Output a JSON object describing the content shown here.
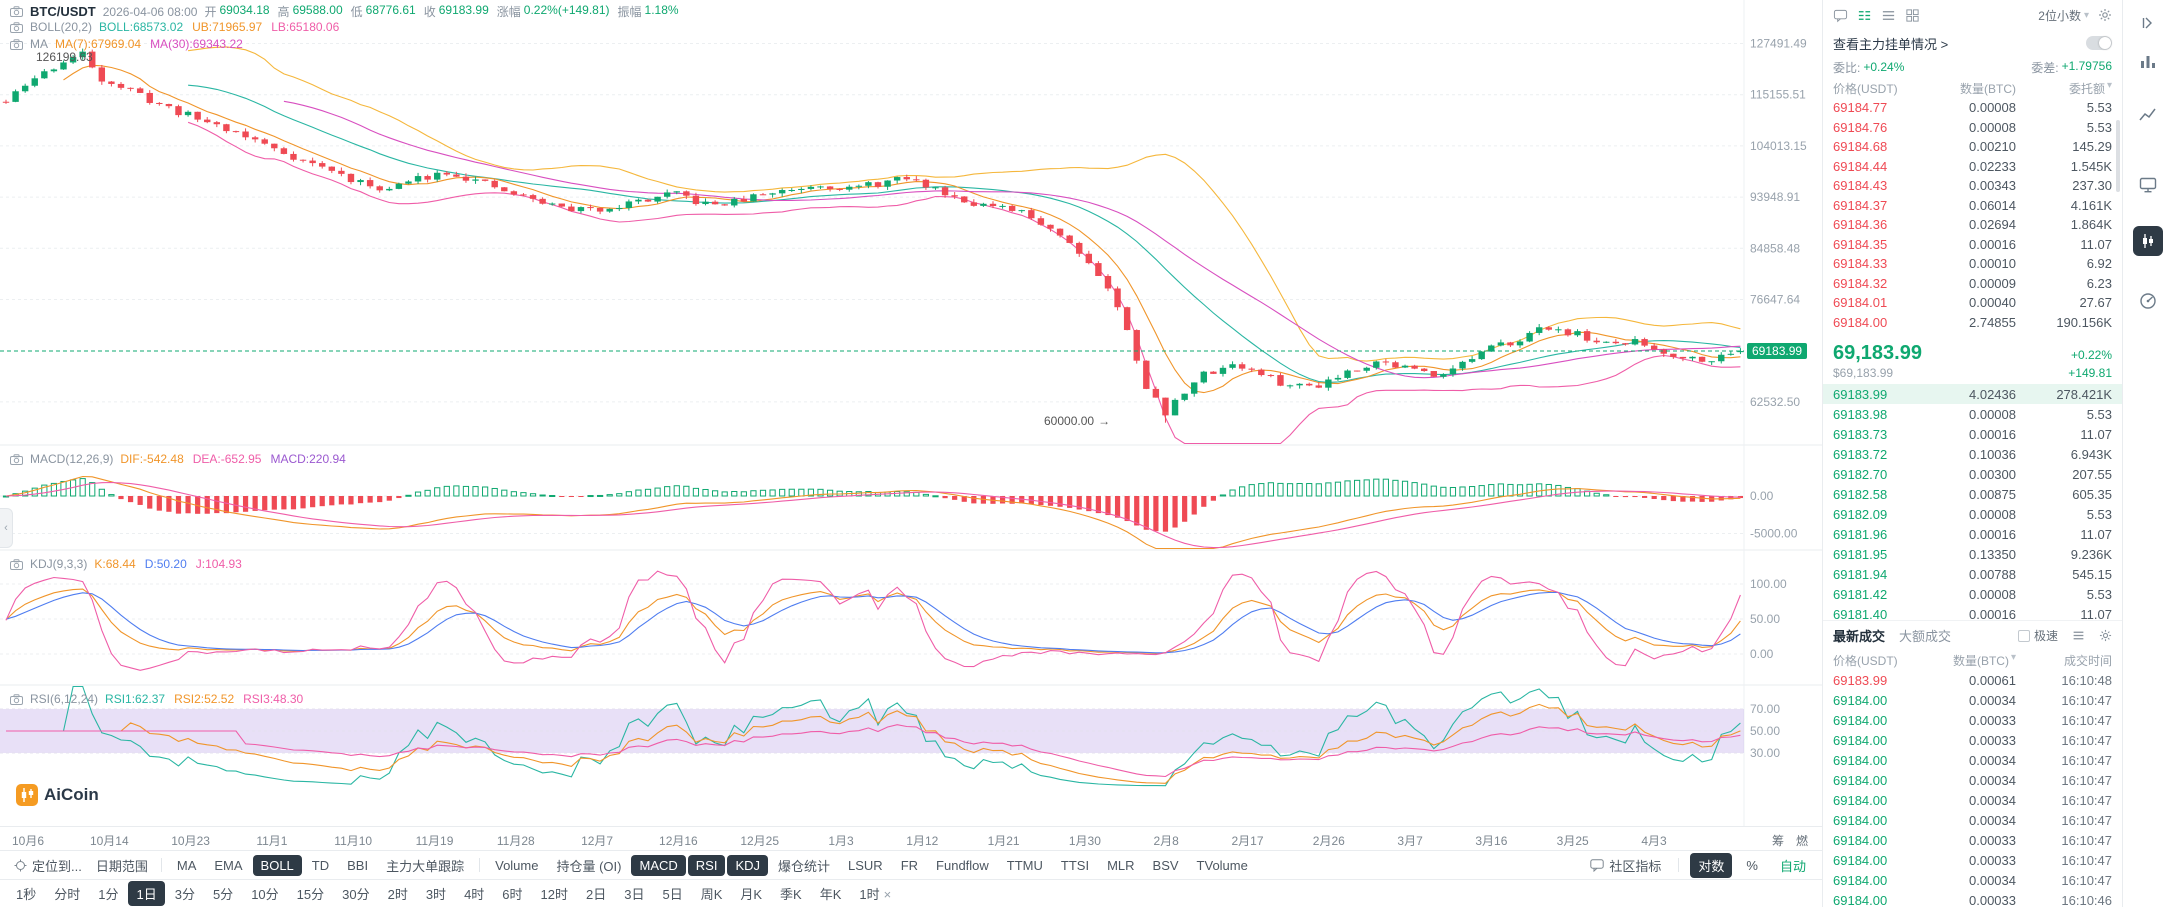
{
  "colors": {
    "up": "#0fa870",
    "down": "#ef4a54",
    "ma7": "#f0952a",
    "ma30": "#d84fc0",
    "boll_mid": "#2ab6a3",
    "boll_ub": "#f5b73c",
    "boll_lb": "#ef5da8",
    "macd_dif": "#f0952a",
    "macd_dea": "#ef5da8",
    "kdj_k": "#f0952a",
    "kdj_d": "#4f7df0",
    "kdj_j": "#ef5da8",
    "rsi1": "#2ab6a3",
    "rsi2": "#f0952a",
    "rsi3": "#ef5da8",
    "rsi_band": "#b9a0e6"
  },
  "ui": {
    "caret": "▾",
    "close_glyph": "×",
    "collapse_glyph": "‹"
  },
  "header": {
    "symbol": "BTC/USDT",
    "datetime": "2026-04-06 08:00",
    "fields": [
      {
        "label": "开",
        "value": "69034.18"
      },
      {
        "label": "高",
        "value": "69588.00"
      },
      {
        "label": "低",
        "value": "68776.61"
      },
      {
        "label": "收",
        "value": "69183.99"
      },
      {
        "label": "涨幅",
        "value": "0.22%(+149.81)"
      },
      {
        "label": "振幅",
        "value": "1.18%"
      }
    ]
  },
  "overlays": {
    "boll": {
      "name": "BOLL(20,2)",
      "parts": [
        {
          "text": "BOLL:68573.02",
          "color": "#2ab6a3"
        },
        {
          "text": "UB:71965.97",
          "color": "#f0952a"
        },
        {
          "text": "LB:65180.06",
          "color": "#ef5da8"
        }
      ]
    },
    "ma": {
      "name": "MA",
      "parts": [
        {
          "text": "MA(7):67969.04",
          "color": "#f0952a"
        },
        {
          "text": "MA(30):69343.22",
          "color": "#d84fc0"
        }
      ]
    }
  },
  "panes": {
    "macd": {
      "name": "MACD(12,26,9)",
      "parts": [
        {
          "text": "DIF:-542.48",
          "color": "#f0952a"
        },
        {
          "text": "DEA:-652.95",
          "color": "#ef5da8"
        },
        {
          "text": "MACD:220.94",
          "color": "#9b59d0"
        }
      ],
      "ticks": [
        "0.00",
        "-5000.00"
      ]
    },
    "kdj": {
      "name": "KDJ(9,3,3)",
      "parts": [
        {
          "text": "K:68.44",
          "color": "#f0952a"
        },
        {
          "text": "D:50.20",
          "color": "#4f7df0"
        },
        {
          "text": "J:104.93",
          "color": "#ef5da8"
        }
      ],
      "ticks": [
        "100.00",
        "50.00",
        "0.00"
      ]
    },
    "rsi": {
      "name": "RSI(6,12,24)",
      "parts": [
        {
          "text": "RSI1:62.37",
          "color": "#2ab6a3"
        },
        {
          "text": "RSI2:52.52",
          "color": "#f0952a"
        },
        {
          "text": "RSI3:48.30",
          "color": "#ef5da8"
        }
      ],
      "ticks": [
        "70.00",
        "50.00",
        "30.00"
      ]
    }
  },
  "main_axis": {
    "ticks": [
      "127491.49",
      "115155.51",
      "104013.15",
      "93948.91",
      "84858.48",
      "76647.64",
      "62532.50"
    ],
    "current": "69183.99"
  },
  "annotations": {
    "peak": "126199.63",
    "trough": "60000.00",
    "trough_arrow": "→"
  },
  "watermark": "AiCoin",
  "axis_buttons": [
    "筹",
    "燃"
  ],
  "dates": [
    "10月6",
    "10月14",
    "10月23",
    "11月1",
    "11月10",
    "11月19",
    "11月28",
    "12月7",
    "12月16",
    "12月25",
    "1月3",
    "1月12",
    "1月21",
    "1月30",
    "2月8",
    "2月17",
    "2月26",
    "3月7",
    "3月16",
    "3月25",
    "4月3"
  ],
  "chart_data": {
    "type": "candlestick",
    "symbol": "BTC/USDT",
    "interval": "1日",
    "candle_count": 182,
    "price_keypoints": [
      [
        0,
        113500
      ],
      [
        3,
        119000
      ],
      [
        6,
        123000
      ],
      [
        8,
        124800
      ],
      [
        10,
        119000
      ],
      [
        13,
        116000
      ],
      [
        16,
        113000
      ],
      [
        19,
        110500
      ],
      [
        22,
        108500
      ],
      [
        25,
        106000
      ],
      [
        28,
        103500
      ],
      [
        31,
        101000
      ],
      [
        34,
        99000
      ],
      [
        37,
        96500
      ],
      [
        40,
        95500
      ],
      [
        43,
        97500
      ],
      [
        46,
        99000
      ],
      [
        49,
        97000
      ],
      [
        52,
        95000
      ],
      [
        55,
        93500
      ],
      [
        58,
        92000
      ],
      [
        61,
        91500
      ],
      [
        64,
        92500
      ],
      [
        67,
        93500
      ],
      [
        70,
        94500
      ],
      [
        73,
        92500
      ],
      [
        76,
        93000
      ],
      [
        79,
        94500
      ],
      [
        82,
        95500
      ],
      [
        85,
        96500
      ],
      [
        88,
        95500
      ],
      [
        91,
        96500
      ],
      [
        94,
        97500
      ],
      [
        97,
        95500
      ],
      [
        100,
        93500
      ],
      [
        103,
        92000
      ],
      [
        106,
        91000
      ],
      [
        109,
        88500
      ],
      [
        112,
        84500
      ],
      [
        115,
        78500
      ],
      [
        117,
        72000
      ],
      [
        119,
        64500
      ],
      [
        121,
        61000
      ],
      [
        123,
        64000
      ],
      [
        125,
        66000
      ],
      [
        128,
        67500
      ],
      [
        131,
        66000
      ],
      [
        134,
        64500
      ],
      [
        137,
        64800
      ],
      [
        140,
        66500
      ],
      [
        143,
        67800
      ],
      [
        146,
        67000
      ],
      [
        149,
        66000
      ],
      [
        152,
        67500
      ],
      [
        155,
        69500
      ],
      [
        158,
        71000
      ],
      [
        161,
        72600
      ],
      [
        164,
        71500
      ],
      [
        167,
        70000
      ],
      [
        170,
        70500
      ],
      [
        173,
        69000
      ],
      [
        176,
        68200
      ],
      [
        179,
        68300
      ],
      [
        181,
        69100
      ]
    ],
    "peak": {
      "index": 8,
      "price": 126199.63
    },
    "trough": {
      "index": 121,
      "price": 60000.0
    },
    "last_candle": {
      "o": 69034.18,
      "h": 69588.0,
      "l": 68776.61,
      "c": 69183.99
    },
    "current_price": 69183.99,
    "y_axis_log_ticks": [
      127491.49,
      115155.51,
      104013.15,
      93948.91,
      84858.48,
      76647.64,
      62532.5
    ],
    "indicators": {
      "boll": {
        "period": 20,
        "mult": 2
      },
      "ma": [
        7,
        30
      ],
      "macd": {
        "fast": 12,
        "slow": 26,
        "signal": 9,
        "ticks": [
          0,
          -5000
        ]
      },
      "kdj": {
        "params": [
          9,
          3,
          3
        ],
        "ticks": [
          100,
          50,
          0
        ]
      },
      "rsi": {
        "periods": [
          6,
          12,
          24
        ],
        "ticks": [
          70,
          50,
          30
        ]
      }
    }
  },
  "panel": {
    "decimal_selector": "2位小数"
  },
  "orderbook": {
    "view_link": "查看主力挂单情况 >",
    "ratio_label": "委比:",
    "ratio_value": "+0.24%",
    "diff_label": "委差:",
    "diff_value": "+1.79756",
    "columns": [
      "价格(USDT)",
      "数量(BTC)",
      "委托额"
    ],
    "asks": [
      [
        "69184.77",
        "0.00008",
        "5.53"
      ],
      [
        "69184.76",
        "0.00008",
        "5.53"
      ],
      [
        "69184.68",
        "0.00210",
        "145.29"
      ],
      [
        "69184.44",
        "0.02233",
        "1.545K"
      ],
      [
        "69184.43",
        "0.00343",
        "237.30"
      ],
      [
        "69184.37",
        "0.06014",
        "4.161K"
      ],
      [
        "69184.36",
        "0.02694",
        "1.864K"
      ],
      [
        "69184.35",
        "0.00016",
        "11.07"
      ],
      [
        "69184.33",
        "0.00010",
        "6.92"
      ],
      [
        "69184.32",
        "0.00009",
        "6.23"
      ],
      [
        "69184.01",
        "0.00040",
        "27.67"
      ],
      [
        "69184.00",
        "2.74855",
        "190.156K"
      ]
    ],
    "last_price": "69,183.99",
    "last_change_pct": "+0.22%",
    "last_price_usd": "$69,183.99",
    "last_change_abs": "+149.81",
    "bids": [
      [
        "69183.99",
        "4.02436",
        "278.421K"
      ],
      [
        "69183.98",
        "0.00008",
        "5.53"
      ],
      [
        "69183.73",
        "0.00016",
        "11.07"
      ],
      [
        "69183.72",
        "0.10036",
        "6.943K"
      ],
      [
        "69182.70",
        "0.00300",
        "207.55"
      ],
      [
        "69182.58",
        "0.00875",
        "605.35"
      ],
      [
        "69182.09",
        "0.00008",
        "5.53"
      ],
      [
        "69181.96",
        "0.00016",
        "11.07"
      ],
      [
        "69181.95",
        "0.13350",
        "9.236K"
      ],
      [
        "69181.94",
        "0.00788",
        "545.15"
      ],
      [
        "69181.42",
        "0.00008",
        "5.53"
      ],
      [
        "69181.40",
        "0.00016",
        "11.07"
      ]
    ]
  },
  "trades": {
    "tabs": [
      "最新成交",
      "大额成交"
    ],
    "fast_label": "极速",
    "columns": [
      "价格(USDT)",
      "数量(BTC)",
      "成交时间"
    ],
    "rows": [
      {
        "price": "69183.99",
        "qty": "0.00061",
        "time": "16:10:48",
        "side": "sell"
      },
      {
        "price": "69184.00",
        "qty": "0.00034",
        "time": "16:10:47",
        "side": "buy"
      },
      {
        "price": "69184.00",
        "qty": "0.00033",
        "time": "16:10:47",
        "side": "buy"
      },
      {
        "price": "69184.00",
        "qty": "0.00033",
        "time": "16:10:47",
        "side": "buy"
      },
      {
        "price": "69184.00",
        "qty": "0.00034",
        "time": "16:10:47",
        "side": "buy"
      },
      {
        "price": "69184.00",
        "qty": "0.00034",
        "time": "16:10:47",
        "side": "buy"
      },
      {
        "price": "69184.00",
        "qty": "0.00034",
        "time": "16:10:47",
        "side": "buy"
      },
      {
        "price": "69184.00",
        "qty": "0.00034",
        "time": "16:10:47",
        "side": "buy"
      },
      {
        "price": "69184.00",
        "qty": "0.00033",
        "time": "16:10:47",
        "side": "buy"
      },
      {
        "price": "69184.00",
        "qty": "0.00033",
        "time": "16:10:47",
        "side": "buy"
      },
      {
        "price": "69184.00",
        "qty": "0.00034",
        "time": "16:10:47",
        "side": "buy"
      },
      {
        "price": "69184.00",
        "qty": "0.00033",
        "time": "16:10:46",
        "side": "buy"
      }
    ]
  },
  "toolbar": {
    "locate": "定位到...",
    "date_range": "日期范围",
    "overlay_items": [
      {
        "label": "MA"
      },
      {
        "label": "EMA"
      },
      {
        "label": "BOLL",
        "selected": true
      },
      {
        "label": "TD"
      },
      {
        "label": "BBI"
      },
      {
        "label": "主力大单跟踪"
      }
    ],
    "indicator_items": [
      {
        "label": "Volume"
      },
      {
        "label": "持仓量 (OI)"
      },
      {
        "label": "MACD",
        "selected": true
      },
      {
        "label": "RSI",
        "selected": true
      },
      {
        "label": "KDJ",
        "selected": true
      },
      {
        "label": "爆仓统计"
      },
      {
        "label": "LSUR"
      },
      {
        "label": "FR"
      },
      {
        "label": "Fundflow"
      },
      {
        "label": "TTMU"
      },
      {
        "label": "TTSI"
      },
      {
        "label": "MLR"
      },
      {
        "label": "BSV"
      },
      {
        "label": "TVolume"
      }
    ],
    "community": "社区指标",
    "log_label": "对数",
    "percent_label": "%",
    "auto_label": "自动"
  },
  "timeframes": {
    "items": [
      {
        "label": "1秒"
      },
      {
        "label": "分时"
      },
      {
        "label": "1分"
      },
      {
        "label": "1日",
        "selected": true
      },
      {
        "label": "3分"
      },
      {
        "label": "5分"
      },
      {
        "label": "10分"
      },
      {
        "label": "15分"
      },
      {
        "label": "30分"
      },
      {
        "label": "2时"
      },
      {
        "label": "3时"
      },
      {
        "label": "4时"
      },
      {
        "label": "6时"
      },
      {
        "label": "12时"
      },
      {
        "label": "2日"
      },
      {
        "label": "3日"
      },
      {
        "label": "5日"
      },
      {
        "label": "周K"
      },
      {
        "label": "月K"
      },
      {
        "label": "季K"
      },
      {
        "label": "年K"
      },
      {
        "label": "1时",
        "closable": true
      }
    ]
  }
}
